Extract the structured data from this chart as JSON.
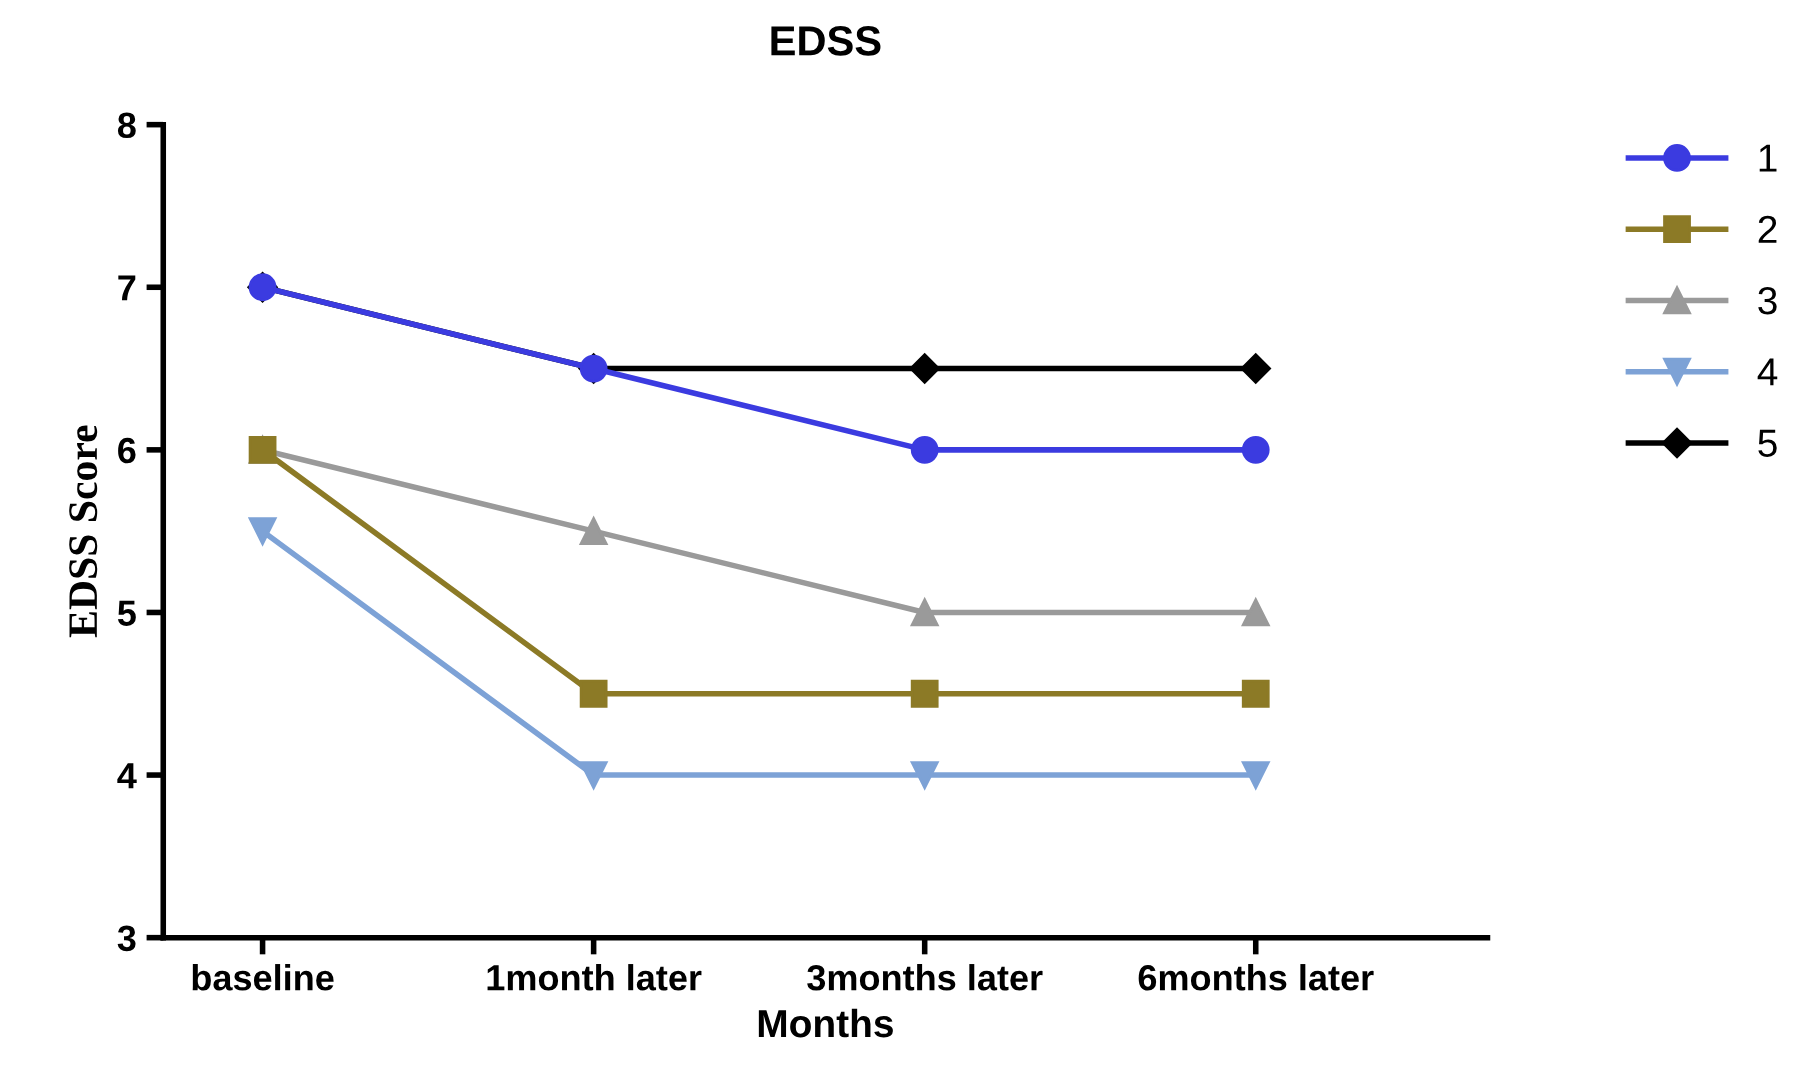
{
  "chart_data": {
    "type": "line",
    "title": "EDSS",
    "xlabel": "Months",
    "ylabel": "EDSS Score",
    "categories": [
      "baseline",
      "1month later",
      "3months later",
      "6months later"
    ],
    "series": [
      {
        "name": "1",
        "color": "#3b3be0",
        "marker": "circle",
        "values": [
          7,
          6.5,
          6,
          6
        ]
      },
      {
        "name": "2",
        "color": "#8c7a26",
        "marker": "square",
        "values": [
          6,
          4.5,
          4.5,
          4.5
        ]
      },
      {
        "name": "3",
        "color": "#9a9a9a",
        "marker": "triangle",
        "values": [
          6,
          5.5,
          5,
          5
        ]
      },
      {
        "name": "4",
        "color": "#7da2d6",
        "marker": "triangle_down",
        "values": [
          5.5,
          4,
          4,
          4
        ]
      },
      {
        "name": "5",
        "color": "#000000",
        "marker": "diamond",
        "values": [
          7,
          6.5,
          6.5,
          6.5
        ]
      }
    ],
    "ylim": [
      3,
      8
    ],
    "yticks": [
      3,
      4,
      5,
      6,
      7,
      8
    ],
    "grid": false,
    "legend": "right",
    "line_style": "solid"
  }
}
